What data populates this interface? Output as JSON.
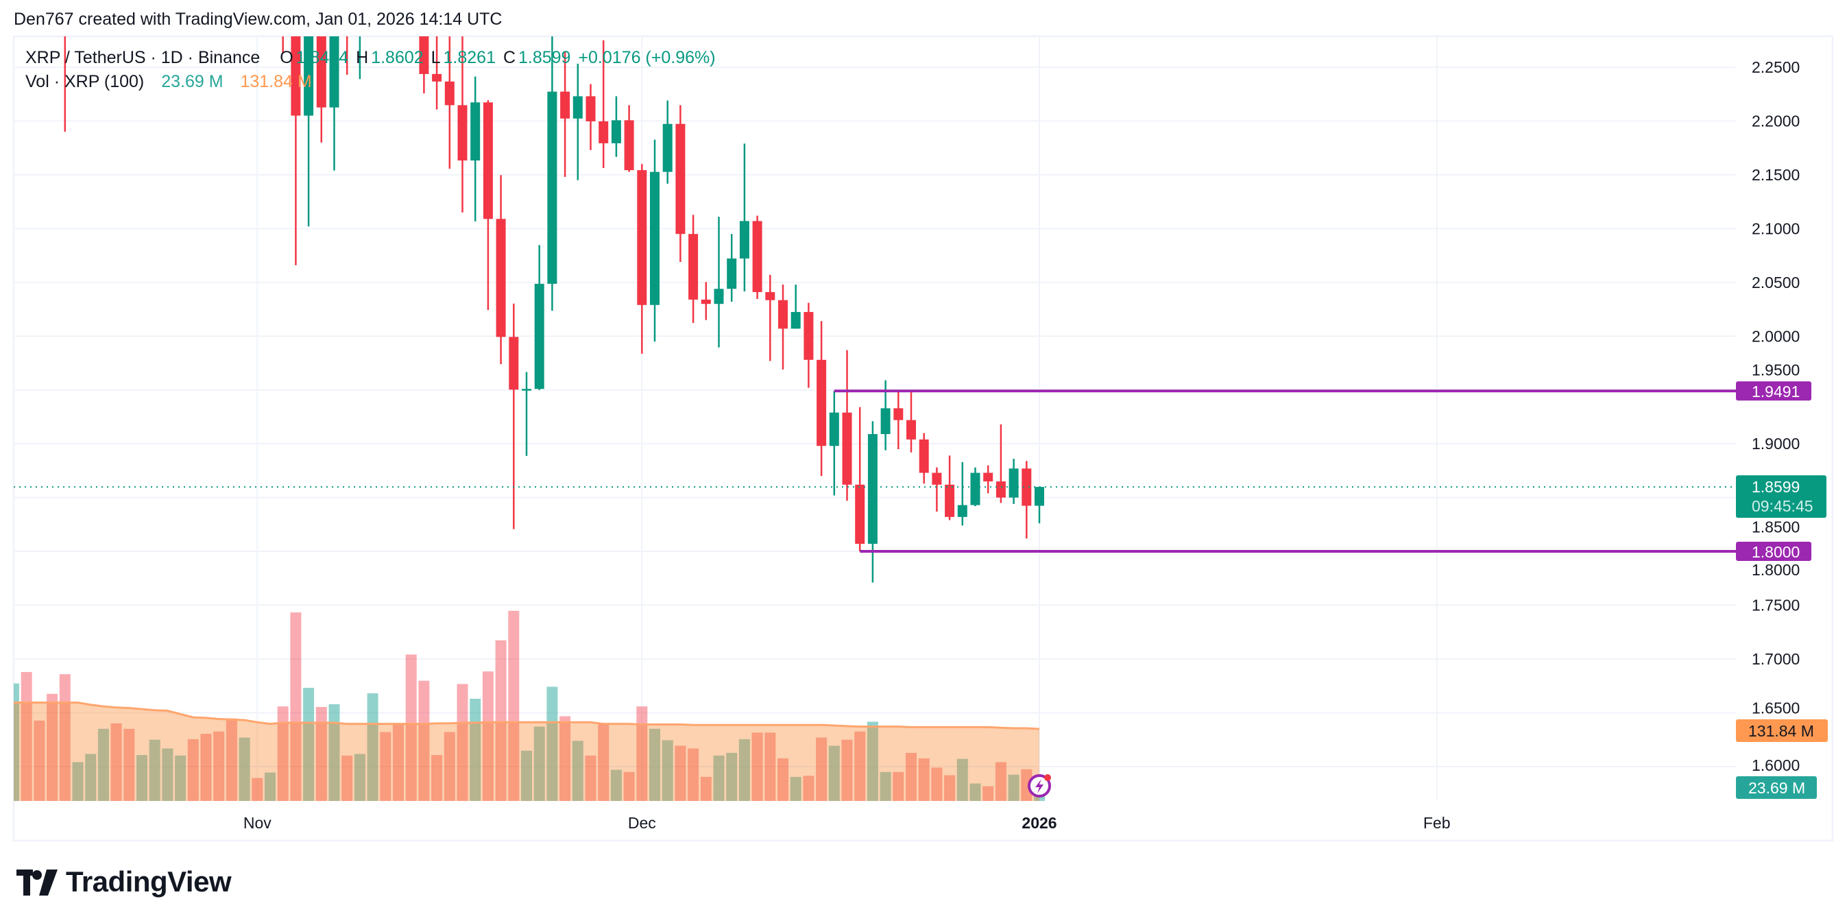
{
  "header": {
    "attribution": "Den767 created with TradingView.com, Jan 01, 2026 14:14 UTC"
  },
  "legend": {
    "symbol": "XRP / TetherUS · 1D · Binance",
    "open_label": "O",
    "open": "1.8424",
    "high_label": "H",
    "high": "1.8602",
    "low_label": "L",
    "low": "1.8261",
    "close_label": "C",
    "close": "1.8599",
    "change": "+0.0176 (+0.96%)",
    "volume_title": "Vol · XRP (100)",
    "volume_value": "23.69 M",
    "volume_ma_value": "131.84 M"
  },
  "price_axis": {
    "ticks": [
      "2.2500",
      "2.2000",
      "2.1500",
      "2.1000",
      "2.0500",
      "2.0000",
      "1.9500",
      "1.9000",
      "1.8500",
      "1.8000",
      "1.7500",
      "1.7000",
      "1.6500",
      "1.6000"
    ],
    "current_price_label": "1.8599",
    "countdown": "09:45:45",
    "level_labels": [
      "1.9491",
      "1.8000"
    ],
    "volume_label": "131.84 M",
    "volume_current_label": "23.69 M"
  },
  "time_axis": {
    "labels": [
      {
        "text": "Nov",
        "date": "2025-11-01",
        "bold": false
      },
      {
        "text": "Dec",
        "date": "2025-12-01",
        "bold": false
      },
      {
        "text": "2026",
        "date": "2026-01-01",
        "bold": true
      },
      {
        "text": "Feb",
        "date": "2026-02-01",
        "bold": false
      }
    ]
  },
  "branding": {
    "logo_text": "TradingView"
  },
  "colors": {
    "up": "#089981",
    "down": "#f23645",
    "level": "#9c27b0",
    "volume_ma": "#ff9850",
    "current_price": "#089981",
    "text": "#131722",
    "grid": "#f0f3fa"
  },
  "icons": {
    "lightning": "lightning-bolt-icon"
  },
  "chart_data": {
    "type": "candlestick",
    "symbol": "XRP / TetherUS",
    "interval": "1D",
    "ylim": [
      1.58,
      2.28
    ],
    "grid": true,
    "note_clipped": "null = beyond visible top of chart",
    "horizontal_levels": [
      {
        "price": 1.9491,
        "from": "2025-12-16"
      },
      {
        "price": 1.8,
        "from": "2025-12-18"
      }
    ],
    "current_price": 1.8599,
    "candles": [
      {
        "d": "2025-10-17",
        "o": null,
        "h": null,
        "l": 2.19,
        "c": null,
        "dir": "down"
      },
      {
        "d": "2025-11-03",
        "o": null,
        "h": null,
        "l": 2.2636,
        "c": null,
        "dir": "down"
      },
      {
        "d": "2025-11-04",
        "o": null,
        "h": null,
        "l": 2.066,
        "c": 2.205,
        "dir": "down"
      },
      {
        "d": "2025-11-05",
        "o": 2.205,
        "h": null,
        "l": 2.102,
        "c": null,
        "dir": "up"
      },
      {
        "d": "2025-11-06",
        "o": null,
        "h": null,
        "l": 2.18,
        "c": 2.2126,
        "dir": "down"
      },
      {
        "d": "2025-11-07",
        "o": 2.2126,
        "h": null,
        "l": 2.154,
        "c": null,
        "dir": "up"
      },
      {
        "d": "2025-11-08",
        "o": null,
        "h": null,
        "l": 2.243,
        "c": null,
        "dir": "down"
      },
      {
        "d": "2025-11-09",
        "o": null,
        "h": null,
        "l": 2.239,
        "c": null,
        "dir": "up"
      },
      {
        "d": "2025-11-14",
        "o": null,
        "h": null,
        "l": 2.2257,
        "c": 2.2437,
        "dir": "down"
      },
      {
        "d": "2025-11-15",
        "o": 2.2437,
        "h": null,
        "l": 2.2107,
        "c": 2.2367,
        "dir": "down"
      },
      {
        "d": "2025-11-16",
        "o": 2.2367,
        "h": null,
        "l": 2.1557,
        "c": 2.2147,
        "dir": "down"
      },
      {
        "d": "2025-11-17",
        "o": 2.2147,
        "h": null,
        "l": 2.115,
        "c": 2.1633,
        "dir": "down"
      },
      {
        "d": "2025-11-18",
        "o": 2.1633,
        "h": 2.2413,
        "l": 2.1067,
        "c": 2.2173,
        "dir": "up"
      },
      {
        "d": "2025-11-19",
        "o": 2.2173,
        "h": 2.2193,
        "l": 2.0243,
        "c": 2.109,
        "dir": "down"
      },
      {
        "d": "2025-11-20",
        "o": 2.109,
        "h": 2.1497,
        "l": 1.974,
        "c": 1.9993,
        "dir": "down"
      },
      {
        "d": "2025-11-21",
        "o": 1.9993,
        "h": 2.0303,
        "l": 1.8207,
        "c": 1.9503,
        "dir": "down"
      },
      {
        "d": "2025-11-22",
        "o": 1.9503,
        "h": 1.9667,
        "l": 1.8887,
        "c": 1.951,
        "dir": "up"
      },
      {
        "d": "2025-11-23",
        "o": 1.951,
        "h": 2.0847,
        "l": 1.95,
        "c": 2.0487,
        "dir": "up"
      },
      {
        "d": "2025-11-24",
        "o": 2.0487,
        "h": null,
        "l": 2.0237,
        "c": 2.2273,
        "dir": "up"
      },
      {
        "d": "2025-11-25",
        "o": 2.2273,
        "h": 2.2647,
        "l": 2.148,
        "c": 2.2023,
        "dir": "down"
      },
      {
        "d": "2025-11-26",
        "o": 2.2023,
        "h": 2.2533,
        "l": 2.145,
        "c": 2.223,
        "dir": "up"
      },
      {
        "d": "2025-11-27",
        "o": 2.223,
        "h": 2.2343,
        "l": 2.173,
        "c": 2.1997,
        "dir": "down"
      },
      {
        "d": "2025-11-28",
        "o": 2.1997,
        "h": 2.275,
        "l": 2.1563,
        "c": 2.1793,
        "dir": "down"
      },
      {
        "d": "2025-11-29",
        "o": 2.1793,
        "h": 2.223,
        "l": 2.1667,
        "c": 2.2007,
        "dir": "up"
      },
      {
        "d": "2025-11-30",
        "o": 2.2007,
        "h": 2.2147,
        "l": 2.1527,
        "c": 2.1543,
        "dir": "down"
      },
      {
        "d": "2025-12-01",
        "o": 2.1543,
        "h": 2.16,
        "l": 1.9837,
        "c": 2.029,
        "dir": "down"
      },
      {
        "d": "2025-12-02",
        "o": 2.029,
        "h": 2.1827,
        "l": 1.995,
        "c": 2.1527,
        "dir": "up"
      },
      {
        "d": "2025-12-03",
        "o": 2.1527,
        "h": 2.219,
        "l": 2.1417,
        "c": 2.1973,
        "dir": "up"
      },
      {
        "d": "2025-12-04",
        "o": 2.1973,
        "h": 2.2147,
        "l": 2.069,
        "c": 2.095,
        "dir": "down"
      },
      {
        "d": "2025-12-05",
        "o": 2.095,
        "h": 2.1127,
        "l": 2.0123,
        "c": 2.034,
        "dir": "down"
      },
      {
        "d": "2025-12-06",
        "o": 2.034,
        "h": 2.0503,
        "l": 2.015,
        "c": 2.03,
        "dir": "down"
      },
      {
        "d": "2025-12-07",
        "o": 2.03,
        "h": 2.111,
        "l": 1.9896,
        "c": 2.044,
        "dir": "up"
      },
      {
        "d": "2025-12-08",
        "o": 2.044,
        "h": 2.095,
        "l": 2.032,
        "c": 2.0722,
        "dir": "up"
      },
      {
        "d": "2025-12-09",
        "o": 2.0722,
        "h": 2.179,
        "l": 2.0416,
        "c": 2.107,
        "dir": "up"
      },
      {
        "d": "2025-12-10",
        "o": 2.107,
        "h": 2.112,
        "l": 2.0346,
        "c": 2.041,
        "dir": "down"
      },
      {
        "d": "2025-12-11",
        "o": 2.041,
        "h": 2.057,
        "l": 1.977,
        "c": 2.0335,
        "dir": "down"
      },
      {
        "d": "2025-12-12",
        "o": 2.0335,
        "h": 2.048,
        "l": 1.969,
        "c": 2.007,
        "dir": "down"
      },
      {
        "d": "2025-12-13",
        "o": 2.007,
        "h": 2.048,
        "l": 2.007,
        "c": 2.0225,
        "dir": "up"
      },
      {
        "d": "2025-12-14",
        "o": 2.0225,
        "h": 2.031,
        "l": 1.952,
        "c": 1.978,
        "dir": "down"
      },
      {
        "d": "2025-12-15",
        "o": 1.978,
        "h": 2.014,
        "l": 1.87,
        "c": 1.898,
        "dir": "down"
      },
      {
        "d": "2025-12-16",
        "o": 1.898,
        "h": 1.949,
        "l": 1.852,
        "c": 1.929,
        "dir": "up"
      },
      {
        "d": "2025-12-17",
        "o": 1.929,
        "h": 1.987,
        "l": 1.847,
        "c": 1.862,
        "dir": "down"
      },
      {
        "d": "2025-12-18",
        "o": 1.862,
        "h": 1.934,
        "l": 1.8,
        "c": 1.807,
        "dir": "down"
      },
      {
        "d": "2025-12-19",
        "o": 1.807,
        "h": 1.921,
        "l": 1.771,
        "c": 1.909,
        "dir": "up"
      },
      {
        "d": "2025-12-20",
        "o": 1.909,
        "h": 1.959,
        "l": 1.894,
        "c": 1.933,
        "dir": "up"
      },
      {
        "d": "2025-12-21",
        "o": 1.933,
        "h": 1.949,
        "l": 1.895,
        "c": 1.922,
        "dir": "down"
      },
      {
        "d": "2025-12-22",
        "o": 1.922,
        "h": 1.949,
        "l": 1.892,
        "c": 1.904,
        "dir": "down"
      },
      {
        "d": "2025-12-23",
        "o": 1.904,
        "h": 1.91,
        "l": 1.863,
        "c": 1.873,
        "dir": "down"
      },
      {
        "d": "2025-12-24",
        "o": 1.873,
        "h": 1.878,
        "l": 1.837,
        "c": 1.862,
        "dir": "down"
      },
      {
        "d": "2025-12-25",
        "o": 1.862,
        "h": 1.889,
        "l": 1.829,
        "c": 1.832,
        "dir": "down"
      },
      {
        "d": "2025-12-26",
        "o": 1.832,
        "h": 1.883,
        "l": 1.824,
        "c": 1.843,
        "dir": "up"
      },
      {
        "d": "2025-12-27",
        "o": 1.843,
        "h": 1.878,
        "l": 1.842,
        "c": 1.873,
        "dir": "up"
      },
      {
        "d": "2025-12-28",
        "o": 1.873,
        "h": 1.88,
        "l": 1.854,
        "c": 1.865,
        "dir": "down"
      },
      {
        "d": "2025-12-29",
        "o": 1.865,
        "h": 1.918,
        "l": 1.845,
        "c": 1.85,
        "dir": "down"
      },
      {
        "d": "2025-12-30",
        "o": 1.85,
        "h": 1.886,
        "l": 1.844,
        "c": 1.877,
        "dir": "up"
      },
      {
        "d": "2025-12-31",
        "o": 1.877,
        "h": 1.884,
        "l": 1.812,
        "c": 1.8424,
        "dir": "down"
      },
      {
        "d": "2026-01-01",
        "o": 1.8424,
        "h": 1.8602,
        "l": 1.8261,
        "c": 1.8599,
        "dir": "up"
      }
    ],
    "volume_start": "2025-10-13",
    "volume_unit": "M",
    "volume": [
      [
        215,
        "up"
      ],
      [
        236,
        "down"
      ],
      [
        147,
        "down"
      ],
      [
        196,
        "down"
      ],
      [
        232,
        "down"
      ],
      [
        71,
        "up"
      ],
      [
        86,
        "up"
      ],
      [
        132,
        "up"
      ],
      [
        142,
        "down"
      ],
      [
        132,
        "down"
      ],
      [
        84,
        "up"
      ],
      [
        112,
        "up"
      ],
      [
        96,
        "up"
      ],
      [
        83,
        "up"
      ],
      [
        113,
        "down"
      ],
      [
        123,
        "down"
      ],
      [
        127,
        "down"
      ],
      [
        151,
        "down"
      ],
      [
        116,
        "up"
      ],
      [
        42,
        "down"
      ],
      [
        52,
        "up"
      ],
      [
        173,
        "down"
      ],
      [
        345,
        "down"
      ],
      [
        207,
        "up"
      ],
      [
        172,
        "down"
      ],
      [
        177,
        "up"
      ],
      [
        83,
        "down"
      ],
      [
        86,
        "up"
      ],
      [
        197,
        "up"
      ],
      [
        126,
        "down"
      ],
      [
        141,
        "down"
      ],
      [
        268,
        "down"
      ],
      [
        220,
        "down"
      ],
      [
        84,
        "down"
      ],
      [
        126,
        "down"
      ],
      [
        214,
        "down"
      ],
      [
        187,
        "up"
      ],
      [
        237,
        "down"
      ],
      [
        294,
        "down"
      ],
      [
        348,
        "down"
      ],
      [
        92,
        "up"
      ],
      [
        136,
        "up"
      ],
      [
        209,
        "up"
      ],
      [
        155,
        "down"
      ],
      [
        110,
        "up"
      ],
      [
        83,
        "down"
      ],
      [
        141,
        "down"
      ],
      [
        57,
        "up"
      ],
      [
        53,
        "down"
      ],
      [
        173,
        "down"
      ],
      [
        132,
        "up"
      ],
      [
        111,
        "up"
      ],
      [
        101,
        "down"
      ],
      [
        96,
        "down"
      ],
      [
        44,
        "down"
      ],
      [
        83,
        "up"
      ],
      [
        88,
        "up"
      ],
      [
        113,
        "up"
      ],
      [
        125,
        "down"
      ],
      [
        125,
        "down"
      ],
      [
        78,
        "down"
      ],
      [
        44,
        "up"
      ],
      [
        46,
        "down"
      ],
      [
        116,
        "down"
      ],
      [
        101,
        "up"
      ],
      [
        112,
        "down"
      ],
      [
        127,
        "down"
      ],
      [
        145,
        "up"
      ],
      [
        53,
        "up"
      ],
      [
        53,
        "down"
      ],
      [
        88,
        "down"
      ],
      [
        78,
        "down"
      ],
      [
        61,
        "down"
      ],
      [
        47,
        "down"
      ],
      [
        77,
        "up"
      ],
      [
        32,
        "up"
      ],
      [
        27,
        "down"
      ],
      [
        71,
        "down"
      ],
      [
        48,
        "up"
      ],
      [
        58,
        "down"
      ],
      [
        23.69,
        "up"
      ]
    ],
    "volume_ma": [
      180,
      180,
      180,
      180,
      180,
      180,
      176,
      173,
      171,
      170,
      168,
      166,
      165,
      159,
      153,
      152,
      150,
      149,
      148,
      144,
      141,
      143,
      143,
      143,
      143,
      143,
      141,
      141,
      141,
      141,
      141,
      141,
      141,
      142,
      142,
      143,
      143,
      144,
      144,
      144,
      144,
      144,
      144,
      144,
      144,
      144,
      141,
      141,
      141,
      140,
      140,
      140,
      140,
      139,
      139,
      139,
      139,
      139,
      139,
      139,
      139,
      139,
      139,
      139,
      138,
      137,
      136,
      136,
      136,
      136,
      135,
      135,
      135,
      135,
      135,
      135,
      135,
      134,
      133,
      133,
      131.84
    ]
  }
}
